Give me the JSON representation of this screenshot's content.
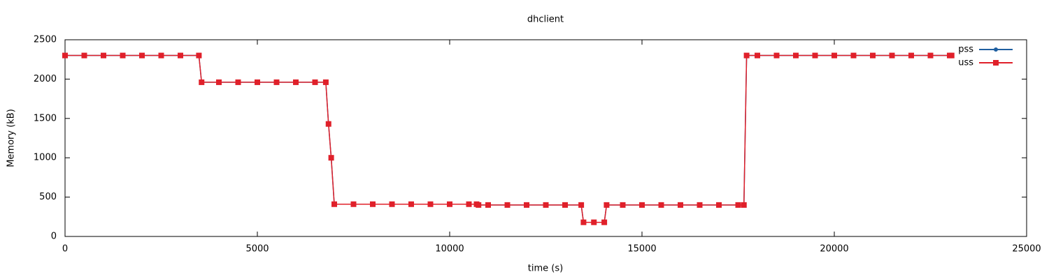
{
  "chart_data": {
    "type": "line",
    "title": "dhclient",
    "x_label": "time (s)",
    "y_label": "Memory (kB)",
    "x": [
      0,
      500,
      1000,
      1500,
      2000,
      2500,
      3000,
      3480,
      3550,
      4000,
      4500,
      5000,
      5500,
      6000,
      6500,
      6780,
      6850,
      6920,
      7000,
      7500,
      8000,
      8500,
      9000,
      9500,
      10000,
      10500,
      10700,
      10750,
      11000,
      11500,
      12000,
      12500,
      13000,
      13420,
      13480,
      13750,
      14020,
      14080,
      14500,
      15000,
      15500,
      16000,
      16500,
      17000,
      17500,
      17650,
      17720,
      18000,
      18500,
      19000,
      19500,
      20000,
      20500,
      21000,
      21500,
      22000,
      22500,
      23000,
      23050
    ],
    "series": [
      {
        "name": "pss",
        "color": "#1f5fa0",
        "marker": "circle",
        "values": [
          2300,
          2300,
          2300,
          2300,
          2300,
          2300,
          2300,
          2300,
          1960,
          1960,
          1960,
          1960,
          1960,
          1960,
          1960,
          1960,
          1430,
          1000,
          410,
          410,
          410,
          410,
          410,
          410,
          410,
          410,
          410,
          400,
          400,
          400,
          400,
          400,
          400,
          400,
          180,
          180,
          180,
          400,
          400,
          400,
          400,
          400,
          400,
          400,
          400,
          400,
          2300,
          2300,
          2300,
          2300,
          2300,
          2300,
          2300,
          2300,
          2300,
          2300,
          2300,
          2300,
          2300
        ]
      },
      {
        "name": "uss",
        "color": "#e0202a",
        "marker": "square",
        "values": [
          2300,
          2300,
          2300,
          2300,
          2300,
          2300,
          2300,
          2300,
          1960,
          1960,
          1960,
          1960,
          1960,
          1960,
          1960,
          1960,
          1430,
          1000,
          410,
          410,
          410,
          410,
          410,
          410,
          410,
          410,
          410,
          400,
          400,
          400,
          400,
          400,
          400,
          400,
          180,
          180,
          180,
          400,
          400,
          400,
          400,
          400,
          400,
          400,
          400,
          400,
          2300,
          2300,
          2300,
          2300,
          2300,
          2300,
          2300,
          2300,
          2300,
          2300,
          2300,
          2300,
          2300
        ]
      }
    ],
    "xlim": [
      0,
      25000
    ],
    "xticks": [
      0,
      5000,
      10000,
      15000,
      20000,
      25000
    ],
    "ylim": [
      0,
      2500
    ],
    "yticks": [
      0,
      500,
      1000,
      1500,
      2000,
      2500
    ],
    "grid": false,
    "legend": "top right"
  }
}
